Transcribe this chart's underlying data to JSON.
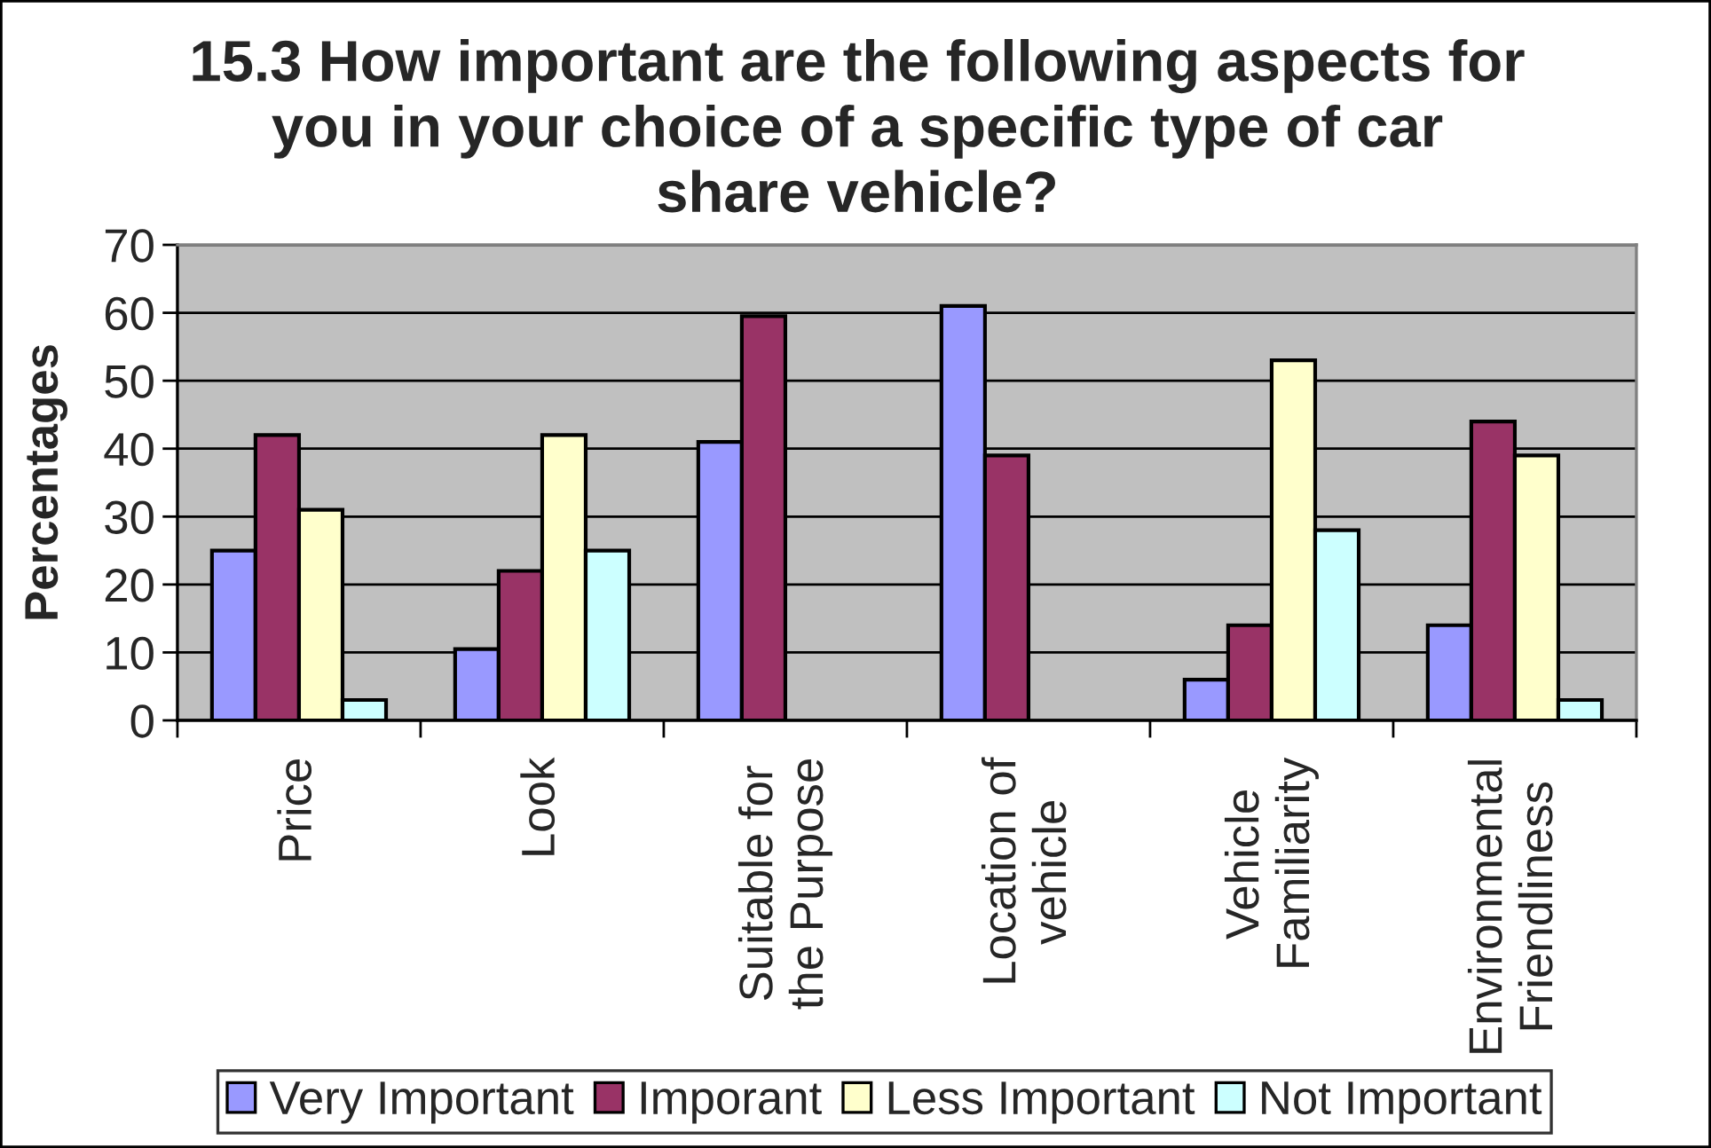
{
  "chart_data": {
    "type": "bar",
    "title": "15.3 How important are the following aspects for\nyou in your choice of a specific type of car\nshare vehicle?",
    "ylabel": "Percentages",
    "categories": [
      "Price",
      "Look",
      "Suitable for\nthe Purpose",
      "Location of\nvehicle",
      "Vehicle\nFamiliarity",
      "Environmental\nFriendliness"
    ],
    "series": [
      {
        "name": "Very Important",
        "color": "#9999ff",
        "values": [
          25,
          10.5,
          41,
          61,
          6,
          14
        ]
      },
      {
        "name": "Imporant",
        "color": "#993366",
        "values": [
          42,
          22,
          59.5,
          39,
          14,
          44
        ]
      },
      {
        "name": "Less Important",
        "color": "#ffffcc",
        "values": [
          31,
          42,
          null,
          null,
          53,
          39
        ]
      },
      {
        "name": "Not Important",
        "color": "#ccffff",
        "values": [
          3,
          25,
          null,
          null,
          28,
          3
        ]
      }
    ],
    "ylim": [
      0,
      70
    ],
    "yticks": [
      0,
      10,
      20,
      30,
      40,
      50,
      60,
      70
    ],
    "grid": "y",
    "legend": "bottom"
  }
}
